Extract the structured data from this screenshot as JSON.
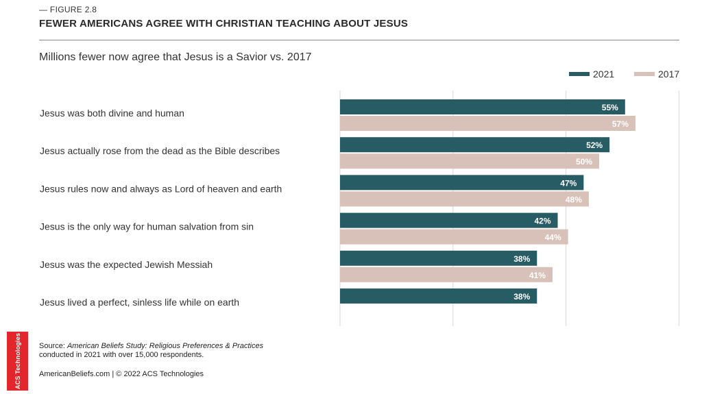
{
  "header": {
    "figure_label": "— FIGURE 2.8",
    "title": "FEWER AMERICANS AGREE WITH CHRISTIAN TEACHING ABOUT JESUS"
  },
  "colors": {
    "series_2021": "#275c64",
    "series_2017": "#d7c1b8",
    "brand_red": "#e3262b"
  },
  "chart_data": {
    "type": "bar",
    "orientation": "horizontal",
    "title": "",
    "subtitle": "Millions fewer now agree that Jesus is a Savior vs. 2017",
    "xlabel": "",
    "ylabel": "",
    "xlim": [
      0,
      60
    ],
    "grid": true,
    "legend_position": "top-right",
    "categories": [
      "Jesus was both divine and human",
      "Jesus actually rose from the dead as the Bible describes",
      "Jesus rules now and always as Lord of heaven and earth",
      "Jesus is the only way for human salvation from sin",
      "Jesus was the expected Jewish Messiah",
      "Jesus lived a perfect, sinless life while on earth"
    ],
    "series": [
      {
        "name": "2021",
        "values": [
          55,
          52,
          47,
          42,
          38,
          38
        ],
        "labels": [
          "55%",
          "52%",
          "47%",
          "42%",
          "38%",
          "38%"
        ]
      },
      {
        "name": "2017",
        "values": [
          57,
          50,
          48,
          44,
          41,
          null
        ],
        "labels": [
          "57%",
          "50%",
          "48%",
          "44%",
          "41%",
          null
        ]
      }
    ]
  },
  "source": {
    "prefix": "Source: ",
    "study": "American Beliefs Study: Religious Preferences & Practices",
    "details": "conducted in 2021 with over 15,000 respondents."
  },
  "footer": {
    "text": "AmericanBeliefs.com | © 2022 ACS Technologies"
  },
  "brand": {
    "tab_text": "ACS Technologies"
  }
}
